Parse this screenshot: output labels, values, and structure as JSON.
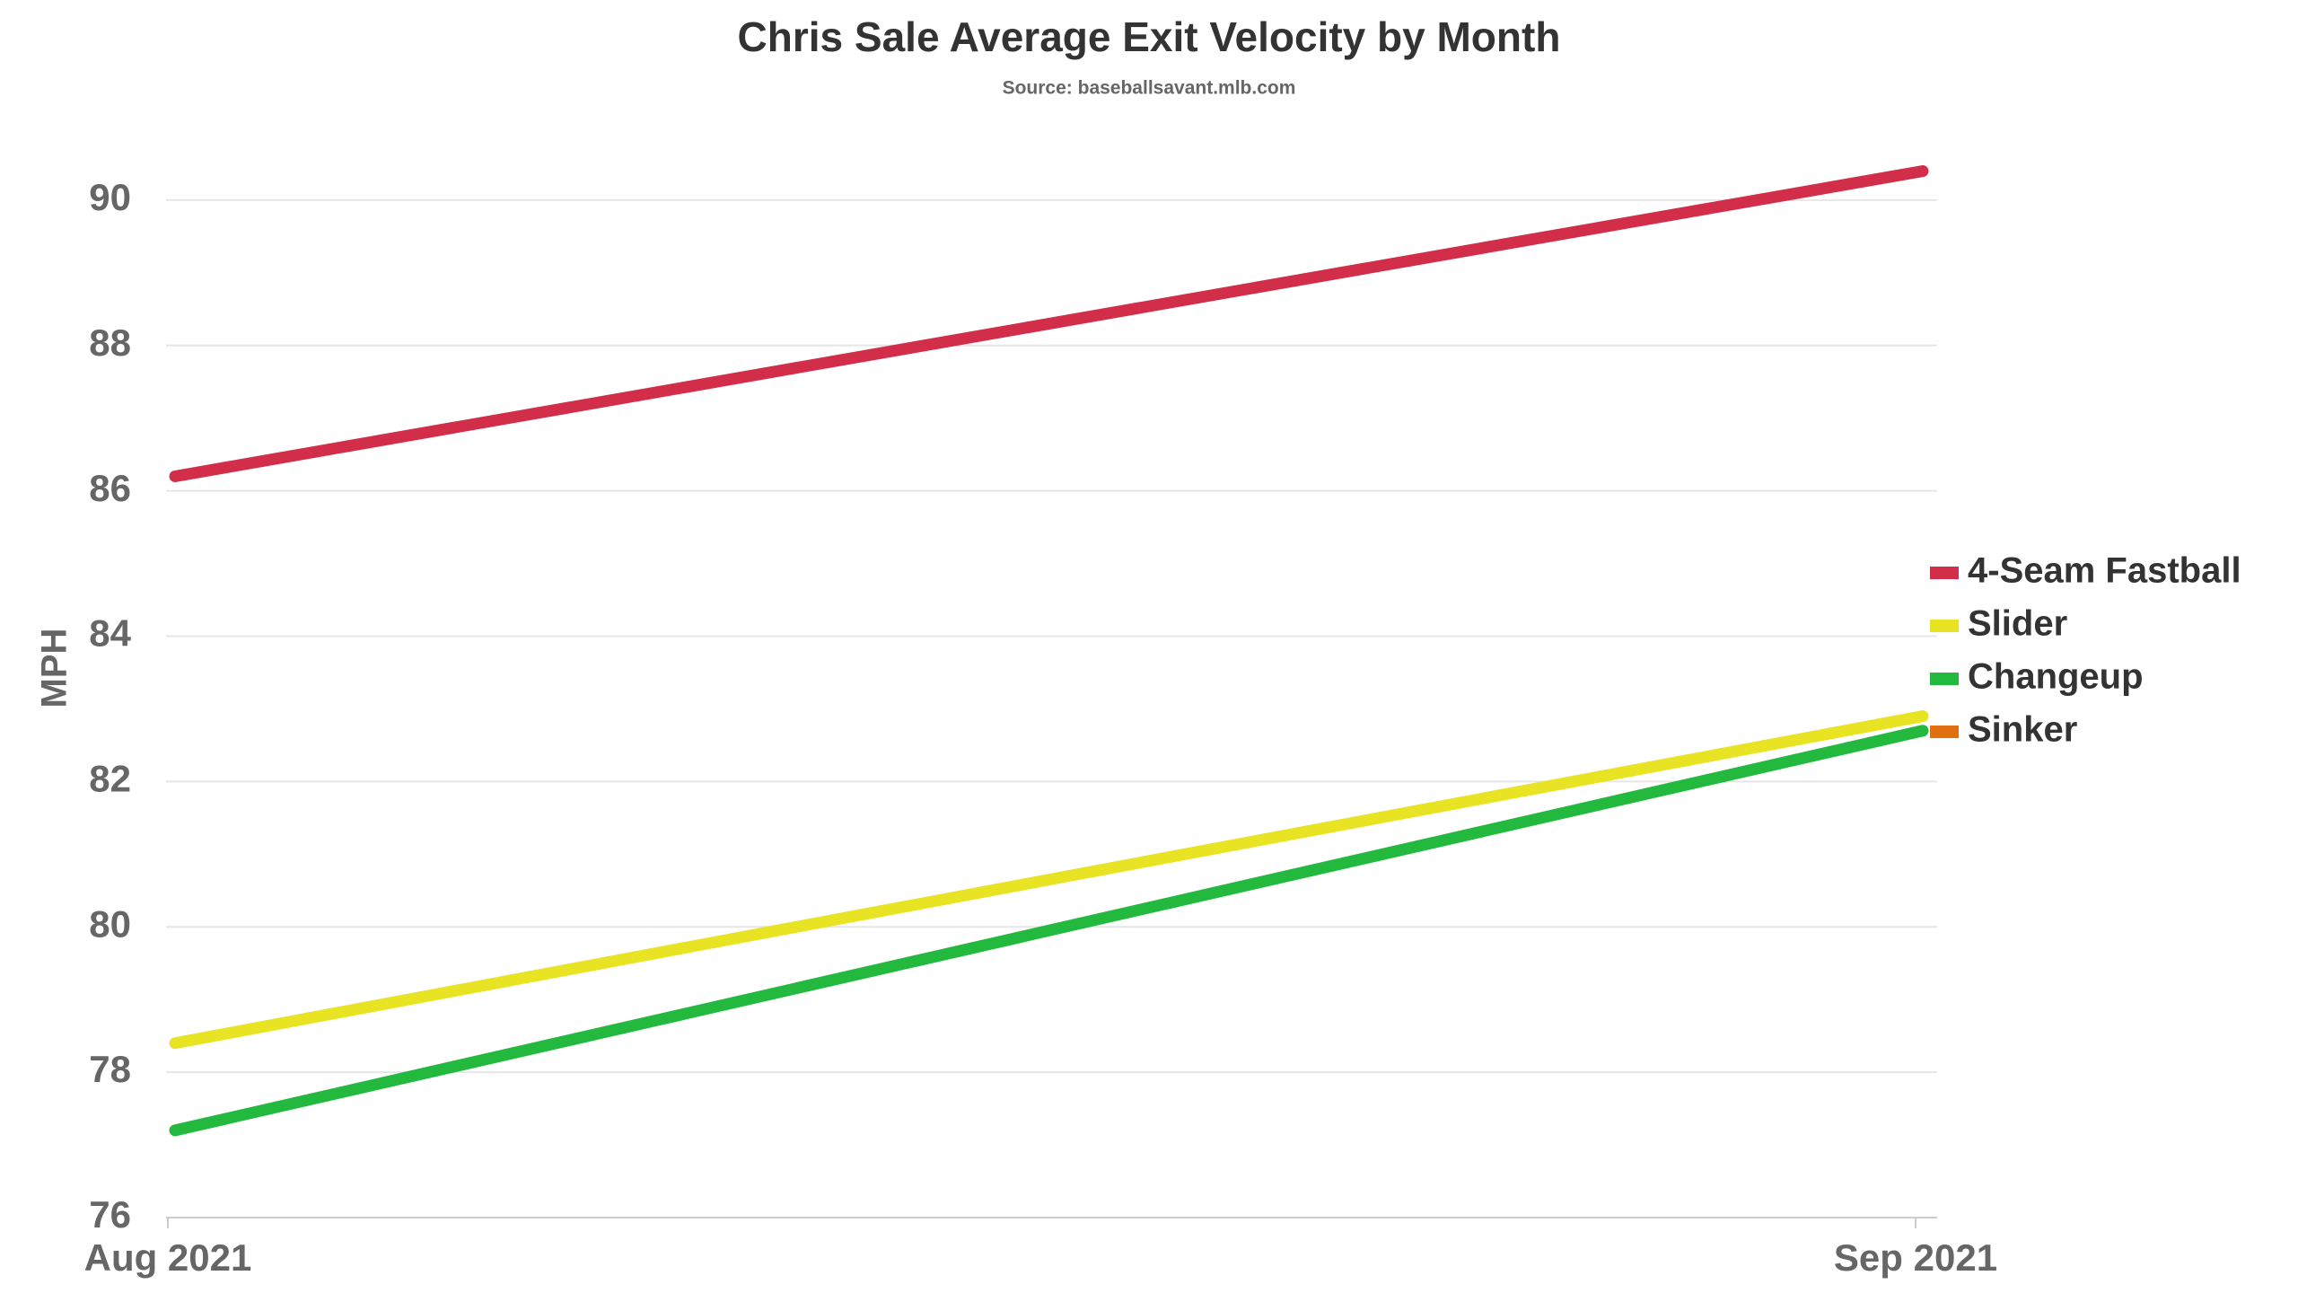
{
  "chart_data": {
    "type": "line",
    "title": "Chris Sale Average Exit Velocity by Month",
    "subtitle": "Source: baseballsavant.mlb.com",
    "y_label": "MPH",
    "categories": [
      "Aug 2021",
      "Sep 2021"
    ],
    "series": [
      {
        "name": "4-Seam Fastball",
        "color": "#d22e4a",
        "values": [
          86.2,
          90.4
        ]
      },
      {
        "name": "Slider",
        "color": "#e8e424",
        "values": [
          78.4,
          82.9
        ]
      },
      {
        "name": "Changeup",
        "color": "#22b93e",
        "values": [
          77.2,
          82.7
        ]
      },
      {
        "name": "Sinker",
        "color": "#e0700f",
        "values": [
          null,
          null
        ]
      }
    ],
    "ylim": [
      76,
      91
    ],
    "yticks": [
      76,
      78,
      80,
      82,
      84,
      86,
      88,
      90
    ],
    "grid": true,
    "legend": "right"
  }
}
